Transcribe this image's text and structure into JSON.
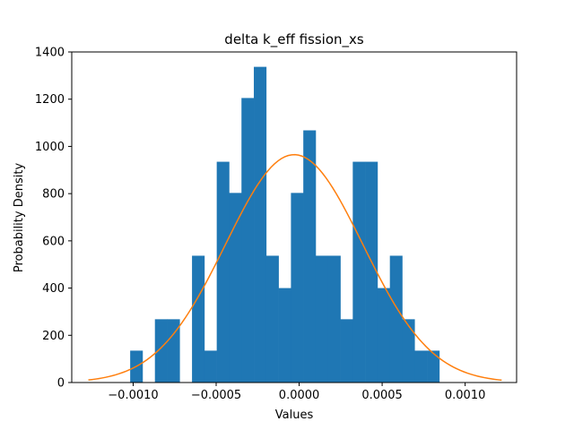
{
  "chart_data": {
    "type": "bar",
    "title": "delta k_eff fission_xs",
    "xlabel": "Values",
    "ylabel": "Probability Density",
    "xlim": [
      -0.00137,
      0.00131
    ],
    "ylim": [
      0,
      1400
    ],
    "xticks": [
      -0.001,
      -0.0005,
      0.0,
      0.0005,
      0.001
    ],
    "xtick_labels": [
      "−0.0010",
      "−0.0005",
      "0.0000",
      "0.0005",
      "0.0010"
    ],
    "yticks": [
      0,
      200,
      400,
      600,
      800,
      1000,
      1200,
      1400
    ],
    "ytick_labels": [
      "0",
      "200",
      "400",
      "600",
      "800",
      "1000",
      "1200",
      "1400"
    ],
    "grid": false,
    "histogram": {
      "name": "",
      "color": "#1f77b4",
      "bin_start": -0.001018,
      "bin_width": 7.45e-05,
      "densities": [
        135,
        0,
        268,
        268,
        0,
        537,
        135,
        935,
        803,
        1205,
        1337,
        537,
        400,
        803,
        1068,
        537,
        537,
        268,
        935,
        935,
        400,
        537,
        268,
        135,
        135
      ]
    },
    "fit_curve": {
      "name": "",
      "color": "#ff7f0e",
      "type": "normal_pdf",
      "x_range": [
        -0.00127,
        0.00122
      ],
      "mean": -3e-05,
      "peak_density": 965
    }
  }
}
